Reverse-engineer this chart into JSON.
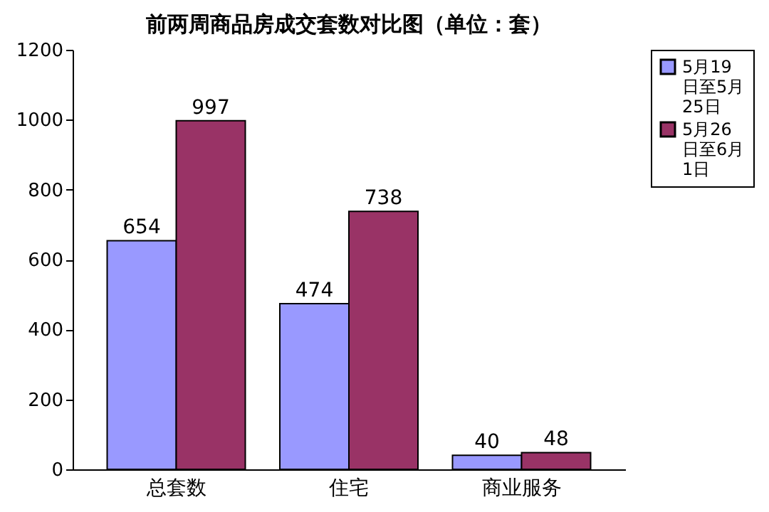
{
  "chart_data": {
    "type": "bar",
    "title": "前两周商品房成交套数对比图（单位：套）",
    "categories": [
      "总套数",
      "住宅",
      "商业服务"
    ],
    "series": [
      {
        "name": "5月19日至5月25日",
        "color": "#9999ff",
        "values": [
          654,
          474,
          40
        ]
      },
      {
        "name": "5月26日至6月1日",
        "color": "#993366",
        "values": [
          997,
          738,
          48
        ]
      }
    ],
    "ylim": [
      0,
      1200
    ],
    "yticks": [
      0,
      200,
      400,
      600,
      800,
      1000,
      1200
    ],
    "grid": false,
    "legend": "right",
    "data_labels": true
  }
}
